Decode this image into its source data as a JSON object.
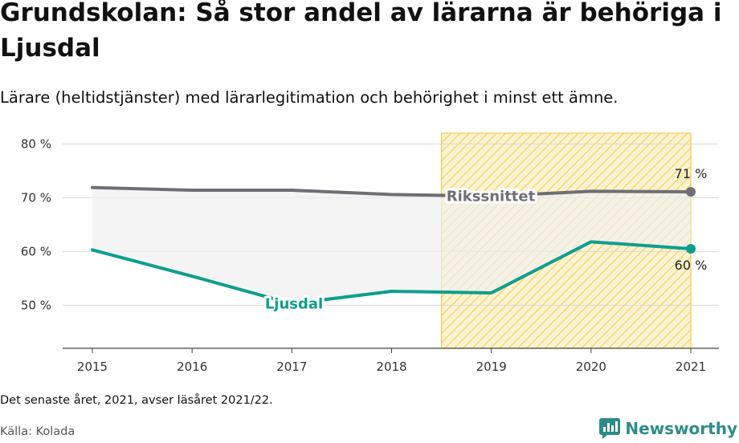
{
  "title": "Grundskolan: Så stor andel av lärarna är behöriga i Ljusdal",
  "subtitle": "Lärare (heltidstjänster) med lärarlegitimation och behörighet i minst ett ämne.",
  "footnote": "Det senaste året, 2021, avser läsåret 2021/22.",
  "source": "Källa: Kolada",
  "brand": {
    "name": "Newsworthy",
    "icon": "bar-chart-speech-bubble-icon"
  },
  "colors": {
    "ljusdal": "#0e9e8e",
    "riket": "#6e6e75",
    "highlight_fill": "#fdf3d0",
    "highlight_stroke": "#f2c94c",
    "band": "#f0f0f0",
    "brand": "#2c8c88"
  },
  "chart_data": {
    "type": "line",
    "x": [
      "2015",
      "2016",
      "2017",
      "2018",
      "2019",
      "2020",
      "2021"
    ],
    "ylim": [
      42,
      82
    ],
    "yticks": [
      50,
      60,
      70,
      80
    ],
    "ytick_labels": [
      "50 %",
      "60 %",
      "70 %",
      "80 %"
    ],
    "grid": true,
    "highlight": {
      "from": "2018.5",
      "to": "2021",
      "style": "hatched"
    },
    "series": [
      {
        "name": "Rikssnittet",
        "values": [
          71.9,
          71.4,
          71.4,
          70.6,
          70.3,
          71.2,
          71.1
        ],
        "end_label": "71 %"
      },
      {
        "name": "Ljusdal",
        "values": [
          60.3,
          55.4,
          50.3,
          52.6,
          52.3,
          61.8,
          60.5
        ],
        "end_label": "60 %"
      }
    ]
  }
}
